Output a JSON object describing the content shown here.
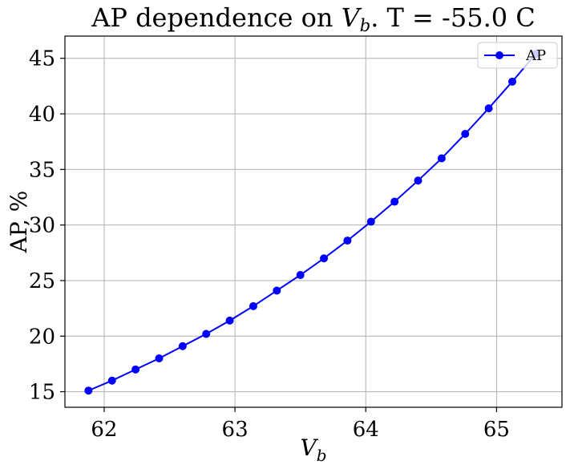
{
  "chart_data": {
    "type": "line",
    "title": {
      "prefix": "AP dependence on ",
      "var": "V",
      "sub": "b",
      "suffix": ". T = -55.0 C"
    },
    "xlabel": {
      "var": "V",
      "sub": "b"
    },
    "ylabel": "AP, %",
    "xlim": [
      61.7,
      65.5
    ],
    "ylim": [
      13.6,
      47.0
    ],
    "xticks": [
      62,
      63,
      64,
      65
    ],
    "yticks": [
      15,
      20,
      25,
      30,
      35,
      40,
      45
    ],
    "grid": true,
    "legend": {
      "position": "top-right",
      "entries": [
        "AP"
      ]
    },
    "series": [
      {
        "name": "AP",
        "color": "#0000ff",
        "marker": "circle",
        "x": [
          61.88,
          62.06,
          62.24,
          62.42,
          62.6,
          62.78,
          62.96,
          63.14,
          63.32,
          63.5,
          63.68,
          63.86,
          64.04,
          64.22,
          64.4,
          64.58,
          64.76,
          64.94,
          65.12,
          65.3
        ],
        "y": [
          15.1,
          16.0,
          17.0,
          18.0,
          19.1,
          20.2,
          21.4,
          22.7,
          24.1,
          25.5,
          27.0,
          28.6,
          30.3,
          32.1,
          34.0,
          36.0,
          38.2,
          40.5,
          42.9,
          45.4
        ]
      }
    ]
  }
}
